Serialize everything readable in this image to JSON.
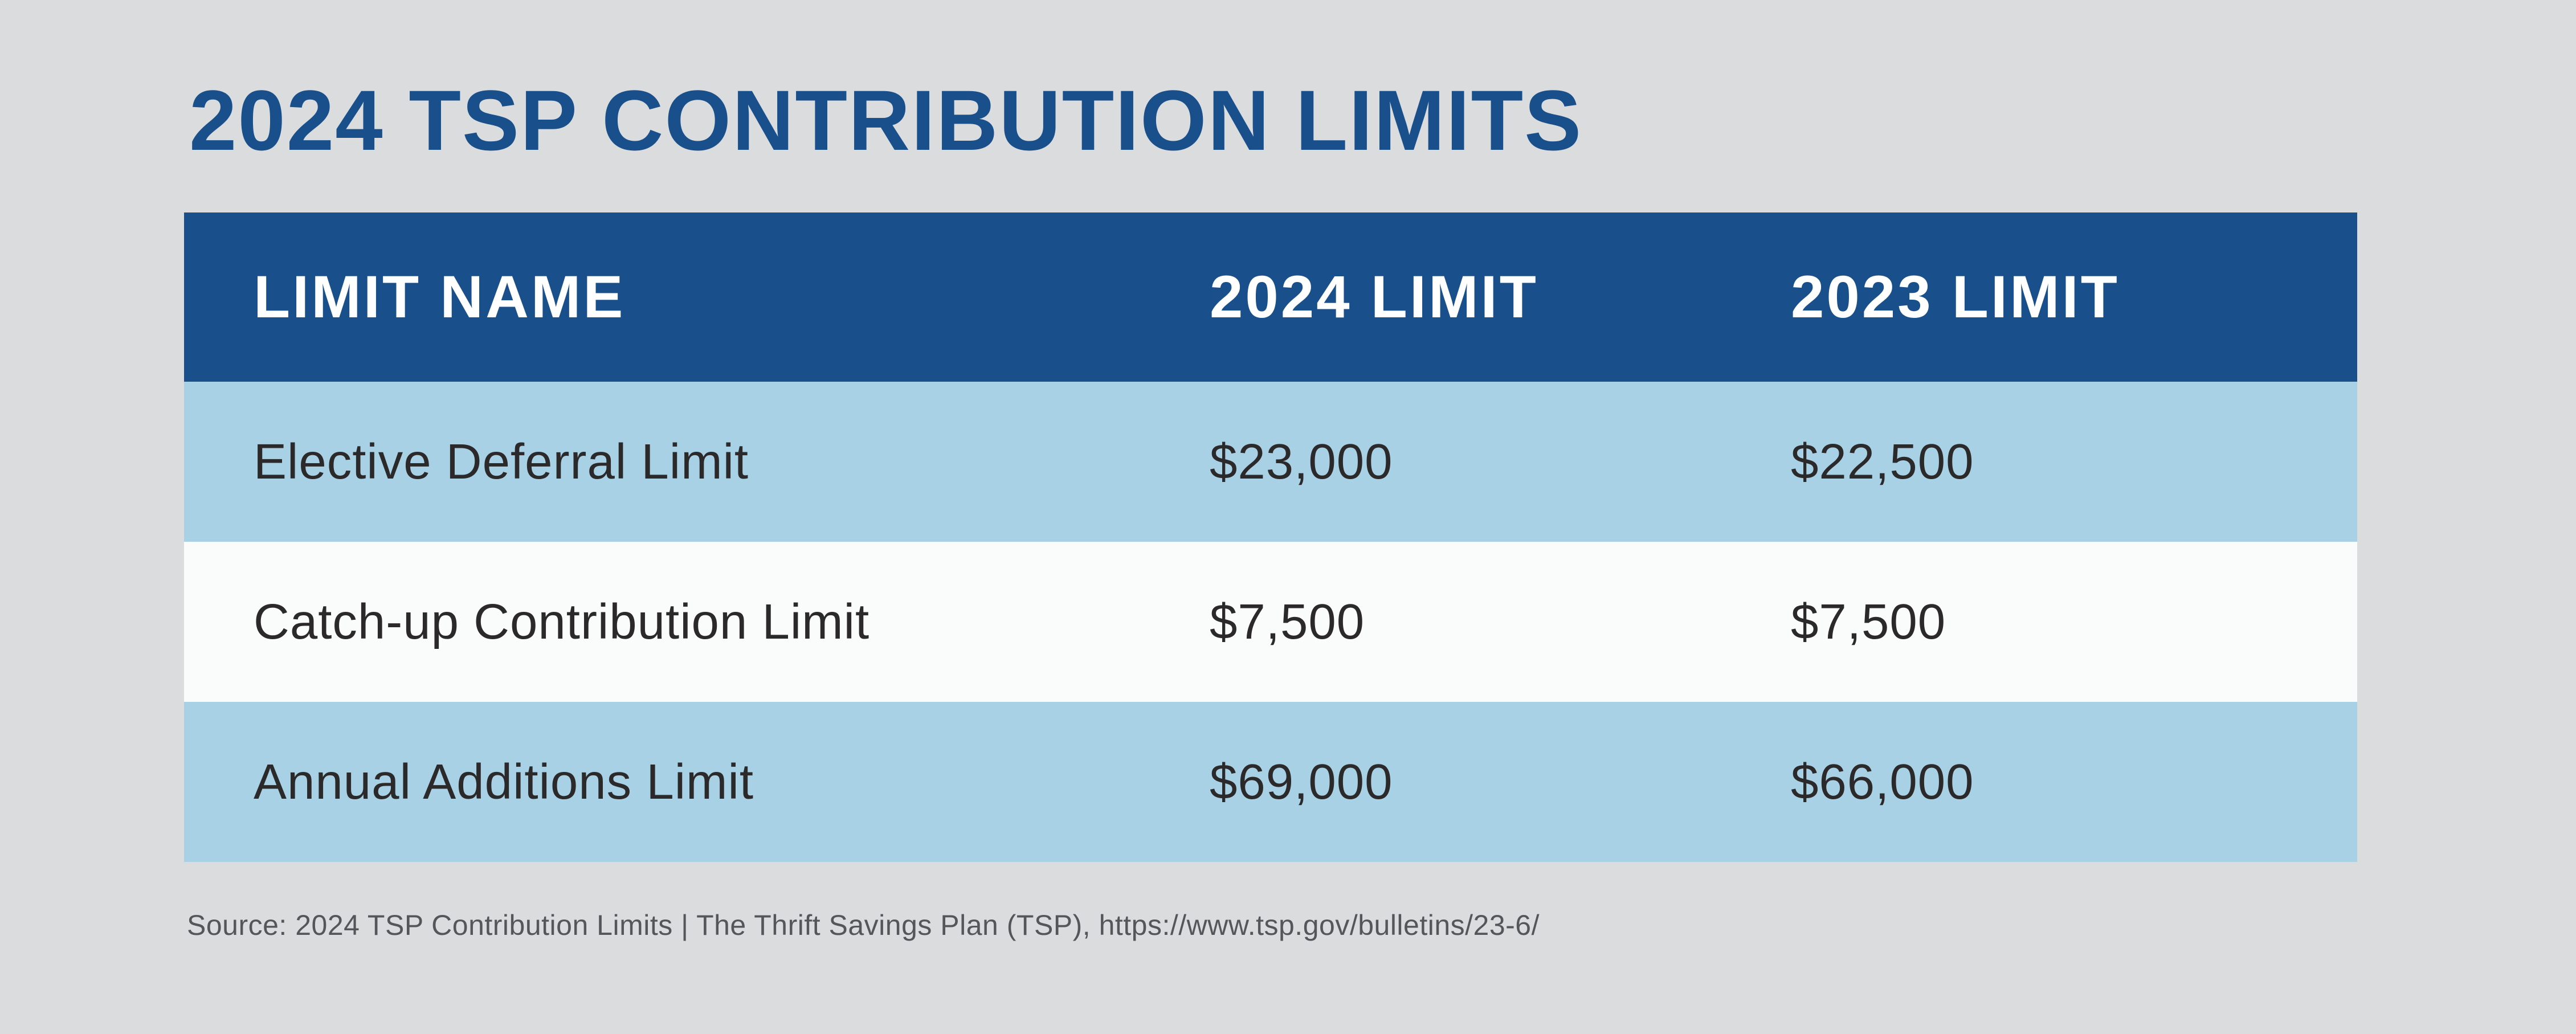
{
  "page": {
    "title": "2024 TSP CONTRIBUTION LIMITS",
    "source_note": "Source: 2024 TSP Contribution Limits | The Thrift Savings Plan (TSP), https://www.tsp.gov/bulletins/23-6/"
  },
  "colors": {
    "brand_blue": "#19508c",
    "light_blue_row": "#a8d1e5",
    "off_white_row": "#fafbfb",
    "page_background": "#dbdcde",
    "header_text": "#ffffff",
    "body_text": "#2b2929",
    "source_text": "#55565a"
  },
  "table": {
    "columns": [
      "LIMIT NAME",
      "2024 LIMIT",
      "2023 LIMIT"
    ],
    "rows": [
      {
        "limit_name": "Elective Deferral Limit",
        "limit_2024": "$23,000",
        "limit_2023": "$22,500"
      },
      {
        "limit_name": "Catch-up Contribution Limit",
        "limit_2024": "$7,500",
        "limit_2023": "$7,500"
      },
      {
        "limit_name": "Annual Additions Limit",
        "limit_2024": "$69,000",
        "limit_2023": "$66,000"
      }
    ]
  },
  "chart_data": {
    "type": "table",
    "title": "2024 TSP CONTRIBUTION LIMITS",
    "columns": [
      "LIMIT NAME",
      "2024 LIMIT",
      "2023 LIMIT"
    ],
    "rows": [
      [
        "Elective Deferral Limit",
        "$23,000",
        "$22,500"
      ],
      [
        "Catch-up Contribution Limit",
        "$7,500",
        "$7,500"
      ],
      [
        "Annual Additions Limit",
        "$69,000",
        "$66,000"
      ]
    ],
    "values_numeric": [
      {
        "limit_name": "Elective Deferral Limit",
        "limit_2024": 23000,
        "limit_2023": 22500
      },
      {
        "limit_name": "Catch-up Contribution Limit",
        "limit_2024": 7500,
        "limit_2023": 7500
      },
      {
        "limit_name": "Annual Additions Limit",
        "limit_2024": 69000,
        "limit_2023": 66000
      }
    ],
    "source": "Source: 2024 TSP Contribution Limits | The Thrift Savings Plan (TSP), https://www.tsp.gov/bulletins/23-6/"
  }
}
